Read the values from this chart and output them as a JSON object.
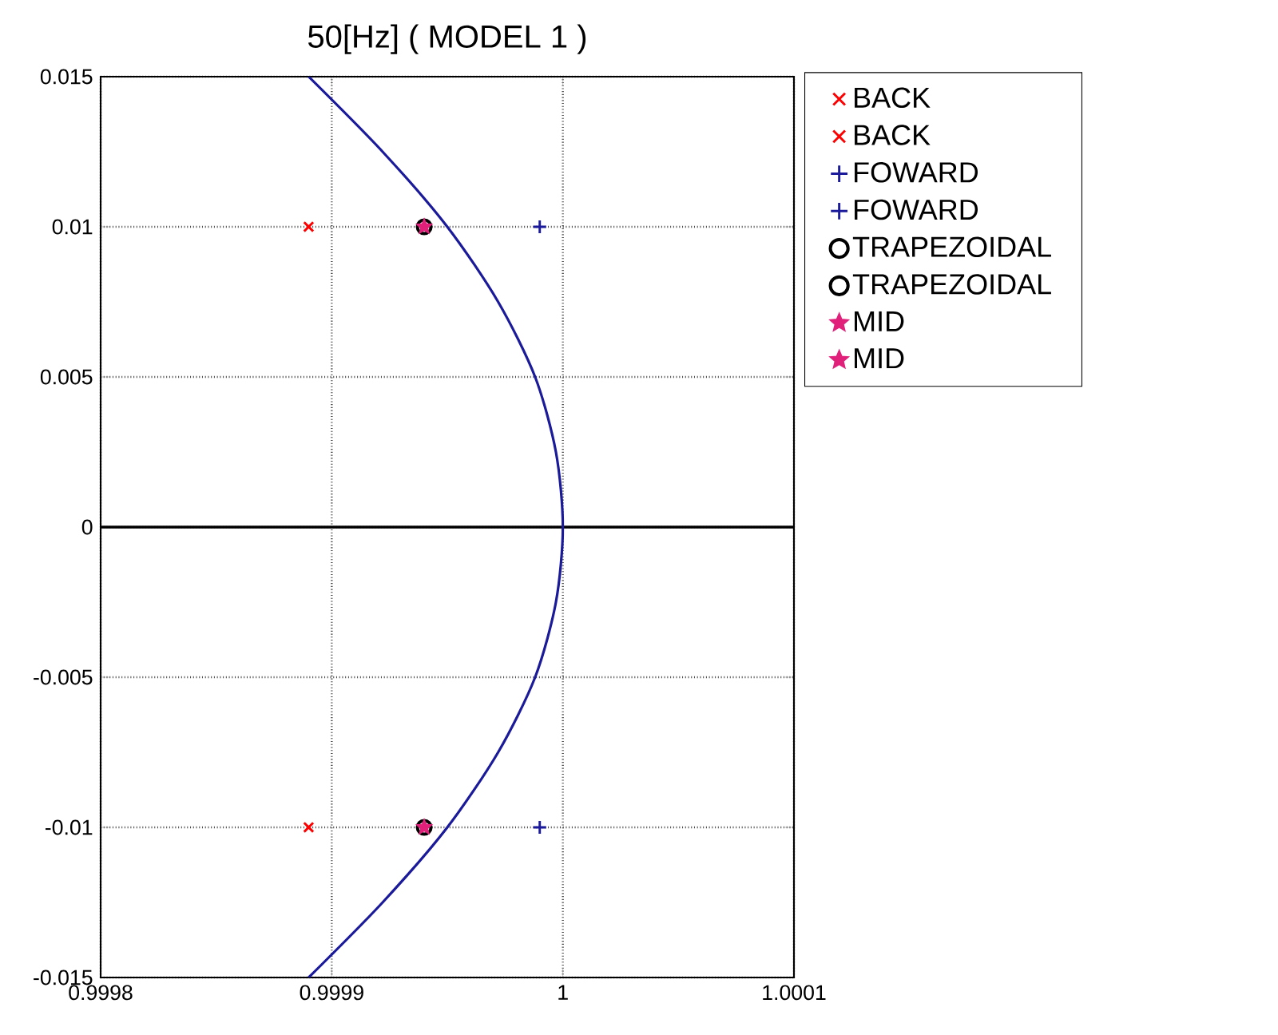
{
  "chart_data": {
    "type": "scatter",
    "title": "50[Hz] ( MODEL 1 )",
    "xlim": [
      0.9998,
      1.0001
    ],
    "xticks": [
      0.9998,
      0.9999,
      1,
      1.0001
    ],
    "ylim": [
      -0.015,
      0.015
    ],
    "yticks": [
      -0.015,
      -0.01,
      -0.005,
      0,
      0.005,
      0.01,
      0.015
    ],
    "grid": true,
    "legend": "top right",
    "ref_lines": [
      {
        "axis": "y",
        "value": 0,
        "color": "#000000"
      }
    ],
    "series": [
      {
        "type": "line",
        "color": "#1a1a9a",
        "x": [
          0.99989,
          0.999922,
          0.99995,
          0.999972,
          0.999988,
          0.999997,
          1,
          0.999997,
          0.999988,
          0.999972,
          0.99995,
          0.999922,
          0.99989
        ],
        "values": [
          -0.015,
          -0.0125,
          -0.01,
          -0.0075,
          -0.005,
          -0.0025,
          0,
          0.0025,
          0.005,
          0.0075,
          0.01,
          0.0125,
          0.015
        ]
      },
      {
        "name": "BACK",
        "marker": "cross",
        "color": "#ff0000",
        "x": [
          0.99989
        ],
        "values": [
          0.01
        ]
      },
      {
        "name": "BACK",
        "marker": "cross",
        "color": "#ff0000",
        "x": [
          0.99989
        ],
        "values": [
          -0.01
        ]
      },
      {
        "name": "FOWARD",
        "marker": "plus",
        "color": "#1a1a9a",
        "x": [
          0.99999
        ],
        "values": [
          0.01
        ]
      },
      {
        "name": "FOWARD",
        "marker": "plus",
        "color": "#1a1a9a",
        "x": [
          0.99999
        ],
        "values": [
          -0.01
        ]
      },
      {
        "name": "TRAPEZOIDAL",
        "marker": "circle",
        "color": "#000000",
        "x": [
          0.99994
        ],
        "values": [
          0.01
        ]
      },
      {
        "name": "TRAPEZOIDAL",
        "marker": "circle",
        "color": "#000000",
        "x": [
          0.99994
        ],
        "values": [
          -0.01
        ]
      },
      {
        "name": "MID",
        "marker": "star",
        "color": "#e0207a",
        "x": [
          0.99994
        ],
        "values": [
          0.01
        ]
      },
      {
        "name": "MID",
        "marker": "star",
        "color": "#e0207a",
        "x": [
          0.99994
        ],
        "values": [
          -0.01
        ]
      }
    ]
  }
}
